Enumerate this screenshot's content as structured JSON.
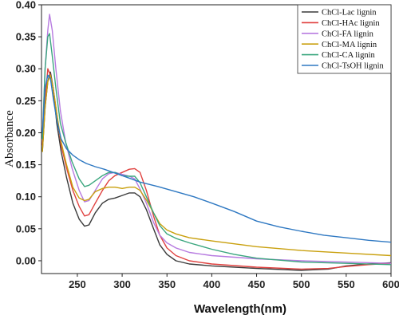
{
  "chart_data": {
    "type": "line",
    "xlabel": "Wavelength(nm)",
    "ylabel": "Absorbance",
    "xlim": [
      210,
      600
    ],
    "ylim": [
      -0.02,
      0.4
    ],
    "x_ticks": [
      250,
      300,
      350,
      400,
      450,
      500,
      550,
      600
    ],
    "y_ticks": [
      0.0,
      0.05,
      0.1,
      0.15,
      0.2,
      0.25,
      0.3,
      0.35,
      0.4
    ],
    "grid": false,
    "legend_position": "top-right",
    "series": [
      {
        "name": "ChCl-Lac lignin",
        "color": "#3a3a3a",
        "points": [
          [
            211,
            0.17
          ],
          [
            214,
            0.24
          ],
          [
            217,
            0.28
          ],
          [
            220,
            0.295
          ],
          [
            223,
            0.27
          ],
          [
            227,
            0.215
          ],
          [
            232,
            0.17
          ],
          [
            238,
            0.13
          ],
          [
            245,
            0.09
          ],
          [
            252,
            0.065
          ],
          [
            258,
            0.054
          ],
          [
            263,
            0.056
          ],
          [
            270,
            0.075
          ],
          [
            278,
            0.09
          ],
          [
            285,
            0.096
          ],
          [
            292,
            0.098
          ],
          [
            300,
            0.102
          ],
          [
            308,
            0.106
          ],
          [
            314,
            0.106
          ],
          [
            320,
            0.1
          ],
          [
            327,
            0.08
          ],
          [
            335,
            0.05
          ],
          [
            342,
            0.025
          ],
          [
            350,
            0.01
          ],
          [
            360,
            0.0
          ],
          [
            375,
            -0.005
          ],
          [
            400,
            -0.008
          ],
          [
            450,
            -0.012
          ],
          [
            500,
            -0.015
          ],
          [
            530,
            -0.013
          ],
          [
            550,
            -0.008
          ],
          [
            575,
            -0.005
          ],
          [
            600,
            -0.003
          ]
        ]
      },
      {
        "name": "ChCl-HAc lignin",
        "color": "#e0413f",
        "points": [
          [
            211,
            0.18
          ],
          [
            214,
            0.25
          ],
          [
            217,
            0.3
          ],
          [
            220,
            0.29
          ],
          [
            223,
            0.27
          ],
          [
            227,
            0.23
          ],
          [
            232,
            0.18
          ],
          [
            238,
            0.145
          ],
          [
            245,
            0.11
          ],
          [
            252,
            0.085
          ],
          [
            258,
            0.07
          ],
          [
            263,
            0.072
          ],
          [
            270,
            0.09
          ],
          [
            278,
            0.11
          ],
          [
            285,
            0.125
          ],
          [
            292,
            0.133
          ],
          [
            300,
            0.138
          ],
          [
            308,
            0.143
          ],
          [
            314,
            0.144
          ],
          [
            320,
            0.138
          ],
          [
            327,
            0.11
          ],
          [
            335,
            0.07
          ],
          [
            342,
            0.04
          ],
          [
            350,
            0.02
          ],
          [
            360,
            0.008
          ],
          [
            375,
            0.0
          ],
          [
            400,
            -0.005
          ],
          [
            450,
            -0.01
          ],
          [
            500,
            -0.013
          ],
          [
            530,
            -0.012
          ],
          [
            550,
            -0.009
          ],
          [
            575,
            -0.006
          ],
          [
            600,
            -0.004
          ]
        ]
      },
      {
        "name": "ChCl-FA lignin",
        "color": "#b77be0",
        "points": [
          [
            211,
            0.19
          ],
          [
            214,
            0.3
          ],
          [
            217,
            0.36
          ],
          [
            219,
            0.385
          ],
          [
            222,
            0.36
          ],
          [
            226,
            0.3
          ],
          [
            231,
            0.235
          ],
          [
            237,
            0.185
          ],
          [
            244,
            0.145
          ],
          [
            252,
            0.11
          ],
          [
            258,
            0.092
          ],
          [
            263,
            0.094
          ],
          [
            270,
            0.11
          ],
          [
            278,
            0.128
          ],
          [
            285,
            0.136
          ],
          [
            292,
            0.138
          ],
          [
            300,
            0.135
          ],
          [
            308,
            0.132
          ],
          [
            314,
            0.128
          ],
          [
            320,
            0.112
          ],
          [
            327,
            0.09
          ],
          [
            335,
            0.06
          ],
          [
            342,
            0.04
          ],
          [
            350,
            0.028
          ],
          [
            360,
            0.02
          ],
          [
            375,
            0.013
          ],
          [
            400,
            0.008
          ],
          [
            450,
            0.003
          ],
          [
            500,
            0.0
          ],
          [
            550,
            -0.002
          ],
          [
            600,
            -0.004
          ]
        ]
      },
      {
        "name": "ChCl-MA lignin",
        "color": "#c9a00e",
        "points": [
          [
            211,
            0.17
          ],
          [
            214,
            0.24
          ],
          [
            217,
            0.28
          ],
          [
            220,
            0.29
          ],
          [
            223,
            0.27
          ],
          [
            227,
            0.23
          ],
          [
            232,
            0.185
          ],
          [
            238,
            0.15
          ],
          [
            245,
            0.115
          ],
          [
            252,
            0.098
          ],
          [
            258,
            0.094
          ],
          [
            263,
            0.096
          ],
          [
            270,
            0.108
          ],
          [
            278,
            0.113
          ],
          [
            285,
            0.115
          ],
          [
            292,
            0.115
          ],
          [
            300,
            0.113
          ],
          [
            308,
            0.115
          ],
          [
            314,
            0.115
          ],
          [
            320,
            0.11
          ],
          [
            327,
            0.095
          ],
          [
            335,
            0.075
          ],
          [
            342,
            0.058
          ],
          [
            350,
            0.048
          ],
          [
            360,
            0.042
          ],
          [
            375,
            0.036
          ],
          [
            400,
            0.031
          ],
          [
            450,
            0.022
          ],
          [
            500,
            0.016
          ],
          [
            550,
            0.012
          ],
          [
            600,
            0.008
          ]
        ]
      },
      {
        "name": "ChCl-CA lignin",
        "color": "#3aa67e",
        "points": [
          [
            211,
            0.19
          ],
          [
            214,
            0.3
          ],
          [
            217,
            0.35
          ],
          [
            219,
            0.355
          ],
          [
            222,
            0.32
          ],
          [
            226,
            0.27
          ],
          [
            231,
            0.215
          ],
          [
            237,
            0.185
          ],
          [
            244,
            0.155
          ],
          [
            252,
            0.128
          ],
          [
            258,
            0.116
          ],
          [
            263,
            0.118
          ],
          [
            270,
            0.125
          ],
          [
            278,
            0.133
          ],
          [
            285,
            0.138
          ],
          [
            292,
            0.138
          ],
          [
            300,
            0.133
          ],
          [
            308,
            0.132
          ],
          [
            314,
            0.132
          ],
          [
            320,
            0.122
          ],
          [
            327,
            0.1
          ],
          [
            335,
            0.075
          ],
          [
            342,
            0.055
          ],
          [
            350,
            0.042
          ],
          [
            360,
            0.035
          ],
          [
            375,
            0.028
          ],
          [
            400,
            0.018
          ],
          [
            425,
            0.01
          ],
          [
            450,
            0.004
          ],
          [
            500,
            -0.002
          ],
          [
            550,
            -0.004
          ],
          [
            600,
            -0.006
          ]
        ]
      },
      {
        "name": "ChCl-TsOH lignin",
        "color": "#2e78c2",
        "points": [
          [
            211,
            0.2
          ],
          [
            214,
            0.27
          ],
          [
            217,
            0.29
          ],
          [
            220,
            0.285
          ],
          [
            223,
            0.255
          ],
          [
            227,
            0.22
          ],
          [
            232,
            0.19
          ],
          [
            238,
            0.175
          ],
          [
            245,
            0.165
          ],
          [
            252,
            0.158
          ],
          [
            260,
            0.152
          ],
          [
            270,
            0.147
          ],
          [
            280,
            0.143
          ],
          [
            290,
            0.138
          ],
          [
            300,
            0.133
          ],
          [
            310,
            0.128
          ],
          [
            320,
            0.123
          ],
          [
            340,
            0.116
          ],
          [
            360,
            0.108
          ],
          [
            380,
            0.1
          ],
          [
            400,
            0.09
          ],
          [
            425,
            0.077
          ],
          [
            450,
            0.062
          ],
          [
            475,
            0.053
          ],
          [
            500,
            0.046
          ],
          [
            525,
            0.04
          ],
          [
            550,
            0.036
          ],
          [
            575,
            0.032
          ],
          [
            600,
            0.029
          ]
        ]
      }
    ]
  }
}
